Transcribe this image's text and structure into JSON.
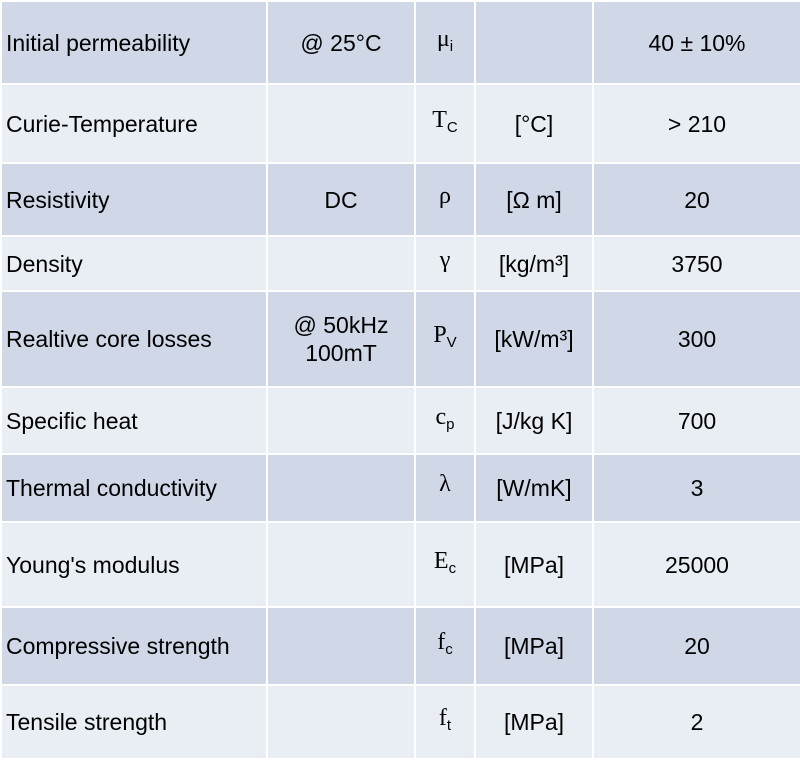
{
  "rows": [
    {
      "property": "Initial permeability",
      "condition": "@ 25°C",
      "symbol": "μ",
      "symbol_sub": "i",
      "unit": "",
      "value": "40 ± 10%"
    },
    {
      "property": "Curie-Temperature",
      "condition": "",
      "symbol": "T",
      "symbol_sub": "C",
      "unit": "[°C]",
      "value": "> 210"
    },
    {
      "property": "Resistivity",
      "condition": "DC",
      "symbol": "ρ",
      "symbol_sub": "",
      "unit": "[Ω m]",
      "value": "20"
    },
    {
      "property": "Density",
      "condition": "",
      "symbol": "γ",
      "symbol_sub": "",
      "unit": "[kg/m³]",
      "value": "3750"
    },
    {
      "property": "Realtive core losses",
      "condition": "@ 50kHz\n100mT",
      "symbol": "P",
      "symbol_sub": "V",
      "unit": "[kW/m³]",
      "value": "300"
    },
    {
      "property": "Specific heat",
      "condition": "",
      "symbol": "c",
      "symbol_sub": "p",
      "unit": "[J/kg K]",
      "value": "700"
    },
    {
      "property": "Thermal conductivity",
      "condition": "",
      "symbol": "λ",
      "symbol_sub": "",
      "unit": "[W/mK]",
      "value": "3"
    },
    {
      "property": "Young's modulus",
      "condition": "",
      "symbol": "E",
      "symbol_sub": "c",
      "unit": "[MPa]",
      "value": "25000"
    },
    {
      "property": "Compressive strength",
      "condition": "",
      "symbol": "f",
      "symbol_sub": "c",
      "unit": "[MPa]",
      "value": "20"
    },
    {
      "property": "Tensile strength",
      "condition": "",
      "symbol": "f",
      "symbol_sub": "t",
      "unit": "[MPa]",
      "value": "2"
    }
  ],
  "colors": {
    "row_dark": "#d0d8e8",
    "row_light": "#e9edf4",
    "border": "#ffffff"
  }
}
